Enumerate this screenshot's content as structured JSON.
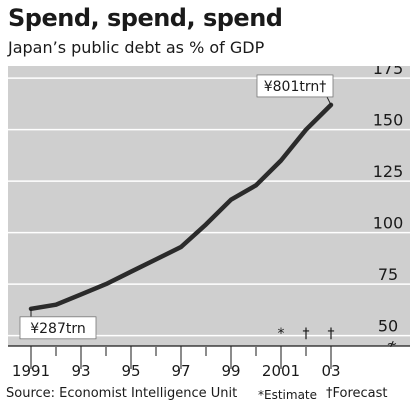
{
  "chart_data": {
    "type": "line",
    "title": "Spend, spend, spend",
    "subtitle": "Japan’s public debt as % of GDP",
    "x_tick_labels": [
      "1991",
      "93",
      "95",
      "97",
      "99",
      "2001",
      "03"
    ],
    "y_tick_labels": [
      "50",
      "75",
      "100",
      "125",
      "150",
      "175"
    ],
    "x_tick_values": [
      1991,
      1993,
      1995,
      1997,
      1999,
      2001,
      2003
    ],
    "y_tick_values": [
      50,
      75,
      100,
      125,
      150,
      175
    ],
    "xlim": [
      1990.8,
      2003.2
    ],
    "ylim": [
      43,
      178
    ],
    "y_axis_position": "right",
    "grid": "horizontal",
    "series": [
      {
        "x": [
          1991,
          1992,
          1993,
          1994,
          1995,
          1996,
          1997,
          1998,
          1999,
          2000,
          2001,
          2002,
          2003
        ],
        "values": [
          63,
          65,
          70,
          75,
          81,
          87,
          93,
          104,
          116,
          123,
          135,
          150,
          162
        ]
      }
    ],
    "annotations": [
      {
        "text": "¥287trn",
        "x": 1991,
        "y": 63
      },
      {
        "text": "¥801trn†",
        "x": 2003,
        "y": 162
      }
    ],
    "estimate_marks": [
      {
        "year": 2001,
        "symbol": "*"
      }
    ],
    "forecast_marks": [
      {
        "year": 2002,
        "symbol": "†"
      },
      {
        "year": 2003,
        "symbol": "†"
      }
    ],
    "axis_break_symbol": "≁",
    "source": "Source: Economist Intelligence Unit",
    "footnotes": {
      "estimate": "*Estimate",
      "forecast": "†Forecast"
    },
    "colors": {
      "background": "#cfcfcf",
      "line": "#2b2b2b",
      "grid": "#ffffff",
      "text": "#1a1a1a"
    }
  }
}
